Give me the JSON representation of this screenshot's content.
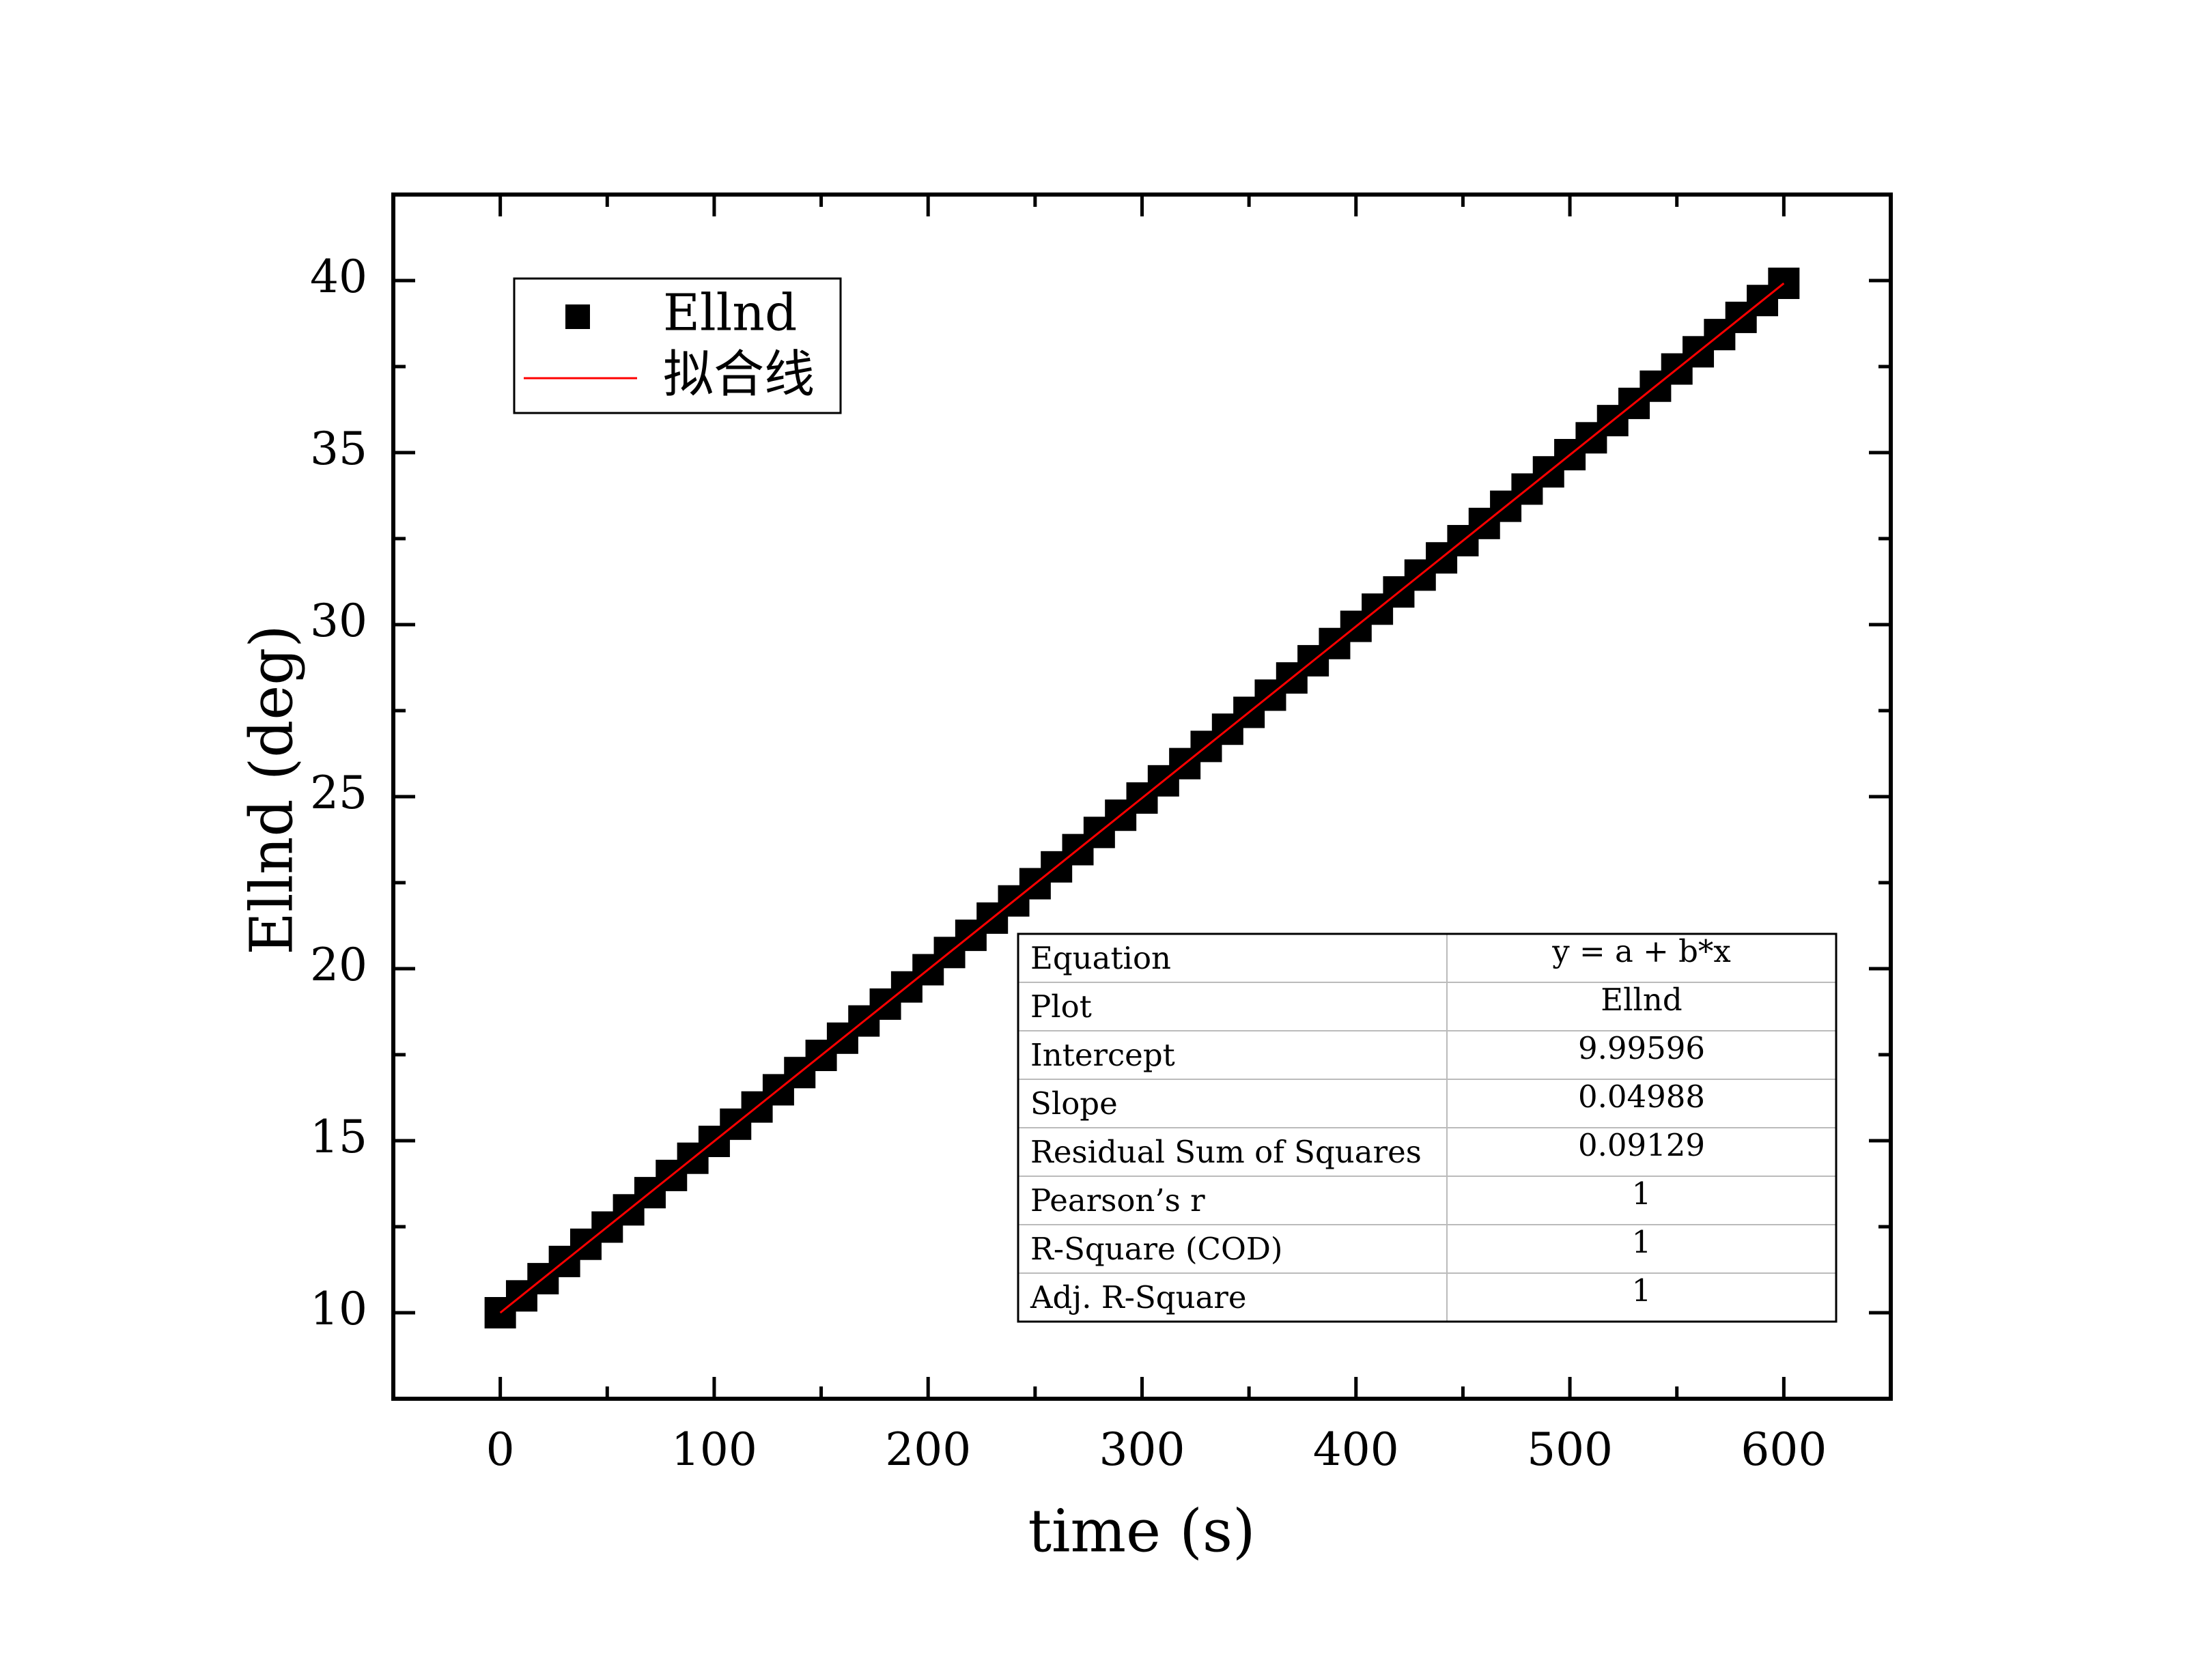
{
  "chart_data": {
    "type": "scatter",
    "xlabel": "time (s)",
    "ylabel": "Ellnd (deg)",
    "xlim": [
      -50,
      650
    ],
    "xticks": [
      0,
      100,
      200,
      300,
      400,
      500,
      600
    ],
    "xminorticks": [
      50,
      150,
      250,
      350,
      450,
      550
    ],
    "ylim": [
      7.5,
      42.5
    ],
    "yticks": [
      10,
      15,
      20,
      25,
      30,
      35,
      40
    ],
    "yminorticks": [
      12.5,
      17.5,
      22.5,
      27.5,
      32.5,
      37.5
    ],
    "legend": "upper left",
    "series": [
      {
        "name": "Ellnd",
        "color": "#000000",
        "marker": "square",
        "x": [
          0,
          10,
          20,
          30,
          40,
          50,
          60,
          70,
          80,
          90,
          100,
          110,
          120,
          130,
          140,
          150,
          160,
          170,
          180,
          190,
          200,
          210,
          220,
          230,
          240,
          250,
          260,
          270,
          280,
          290,
          300,
          310,
          320,
          330,
          340,
          350,
          360,
          370,
          380,
          390,
          400,
          410,
          420,
          430,
          440,
          450,
          460,
          470,
          480,
          490,
          500,
          510,
          520,
          530,
          540,
          550,
          560,
          570,
          580,
          590,
          600
        ],
        "values": [
          10.0,
          10.49,
          10.99,
          11.49,
          11.99,
          12.49,
          12.99,
          13.49,
          13.99,
          14.49,
          14.98,
          15.48,
          15.98,
          16.48,
          16.98,
          17.48,
          17.98,
          18.48,
          18.97,
          19.47,
          19.97,
          20.47,
          20.97,
          21.47,
          21.97,
          22.47,
          22.96,
          23.46,
          23.96,
          24.46,
          24.96,
          25.46,
          25.96,
          26.46,
          26.96,
          27.45,
          27.95,
          28.45,
          28.95,
          29.45,
          29.95,
          30.45,
          30.95,
          31.44,
          31.94,
          32.44,
          32.94,
          33.44,
          33.94,
          34.44,
          34.94,
          35.43,
          35.93,
          36.43,
          36.93,
          37.43,
          37.93,
          38.43,
          38.93,
          39.42,
          39.92
        ]
      },
      {
        "name": "拟合线",
        "color": "#ff0000",
        "marker": "line",
        "x": [
          0,
          600
        ],
        "values": [
          10.0,
          39.92
        ]
      }
    ],
    "fit_table": {
      "rows": [
        [
          "Equation",
          "y = a + b*x"
        ],
        [
          "Plot",
          "Ellnd"
        ],
        [
          "Intercept",
          "9.99596"
        ],
        [
          "Slope",
          "0.04988"
        ],
        [
          "Residual Sum of Squares",
          "0.09129"
        ],
        [
          "Pearson’s r",
          "1"
        ],
        [
          "R-Square (COD)",
          "1"
        ],
        [
          "Adj. R-Square",
          "1"
        ]
      ]
    }
  }
}
